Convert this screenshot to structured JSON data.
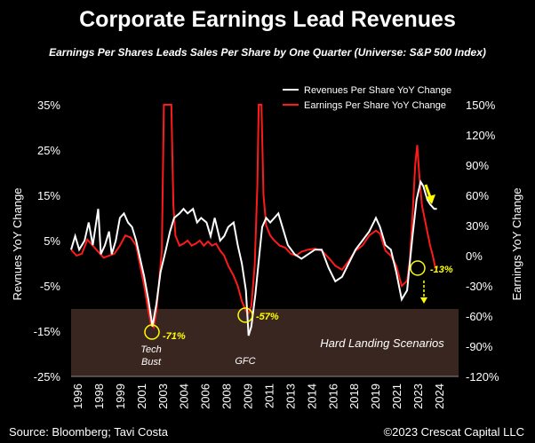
{
  "chart_data": {
    "type": "line",
    "title": "Corporate Earnings Lead Revenues",
    "subtitle": "Earnings Per Shares Leads Sales Per Share by One Quarter (Universe: S&P 500 Index)",
    "ylabel_left": "Revnues YoY Change",
    "ylabel_right": "Earnings YoY Change",
    "ylim_left": [
      -25,
      35
    ],
    "ylim_right": [
      -120,
      150
    ],
    "yticks_left": [
      "35%",
      "25%",
      "15%",
      "5%",
      "-5%",
      "-15%",
      "-25%"
    ],
    "yticks_right": [
      "150%",
      "120%",
      "90%",
      "60%",
      "30%",
      "0%",
      "-30%",
      "-60%",
      "-90%",
      "-120%"
    ],
    "x_tick_labels": [
      "1996",
      "1998",
      "1999",
      "2001",
      "2003",
      "2004",
      "2006",
      "2008",
      "2009",
      "2011",
      "2013",
      "2014",
      "2016",
      "2018",
      "2019",
      "2021",
      "2023",
      "2024"
    ],
    "xlim": [
      1996,
      2024.6
    ],
    "legend": [
      "Revenues Per Share YoY Change",
      "Earnings Per Share YoY Change"
    ],
    "series": [
      {
        "name": "Revenues Per Share YoY Change",
        "axis": "left",
        "color": "#ffffff",
        "points": [
          [
            1996.0,
            3
          ],
          [
            1996.3,
            6
          ],
          [
            1996.6,
            3
          ],
          [
            1997.0,
            5
          ],
          [
            1997.3,
            9
          ],
          [
            1997.6,
            4
          ],
          [
            1998.0,
            12
          ],
          [
            1998.2,
            2
          ],
          [
            1998.5,
            4
          ],
          [
            1998.8,
            7
          ],
          [
            1999.0,
            2
          ],
          [
            1999.3,
            5
          ],
          [
            1999.6,
            10
          ],
          [
            1999.9,
            11
          ],
          [
            2000.2,
            9
          ],
          [
            2000.5,
            8
          ],
          [
            2000.8,
            5
          ],
          [
            2001.1,
            1
          ],
          [
            2001.4,
            -3
          ],
          [
            2001.7,
            -8
          ],
          [
            2002.0,
            -14
          ],
          [
            2002.3,
            -9
          ],
          [
            2002.6,
            -2
          ],
          [
            2003.0,
            3
          ],
          [
            2003.3,
            7
          ],
          [
            2003.6,
            10
          ],
          [
            2004.0,
            11
          ],
          [
            2004.3,
            12
          ],
          [
            2004.6,
            11
          ],
          [
            2005.0,
            12
          ],
          [
            2005.3,
            9
          ],
          [
            2005.6,
            10
          ],
          [
            2006.0,
            9
          ],
          [
            2006.3,
            6
          ],
          [
            2006.6,
            10
          ],
          [
            2007.0,
            5
          ],
          [
            2007.3,
            6
          ],
          [
            2007.6,
            8
          ],
          [
            2008.0,
            9
          ],
          [
            2008.3,
            4
          ],
          [
            2008.6,
            0
          ],
          [
            2008.9,
            -6
          ],
          [
            2009.1,
            -16
          ],
          [
            2009.3,
            -14
          ],
          [
            2009.6,
            -7
          ],
          [
            2009.9,
            2
          ],
          [
            2010.1,
            8
          ],
          [
            2010.4,
            10
          ],
          [
            2010.7,
            9
          ],
          [
            2011.0,
            10
          ],
          [
            2011.3,
            11
          ],
          [
            2011.6,
            8
          ],
          [
            2012.0,
            4
          ],
          [
            2012.5,
            2
          ],
          [
            2013.0,
            1
          ],
          [
            2013.5,
            2
          ],
          [
            2014.0,
            3
          ],
          [
            2014.5,
            3
          ],
          [
            2015.0,
            -1
          ],
          [
            2015.5,
            -4
          ],
          [
            2016.0,
            -3
          ],
          [
            2016.5,
            0
          ],
          [
            2017.0,
            3
          ],
          [
            2017.5,
            5
          ],
          [
            2018.0,
            7
          ],
          [
            2018.5,
            10
          ],
          [
            2018.8,
            8
          ],
          [
            2019.2,
            4
          ],
          [
            2019.6,
            3
          ],
          [
            2020.0,
            -2
          ],
          [
            2020.4,
            -8
          ],
          [
            2020.8,
            -6
          ],
          [
            2021.0,
            0
          ],
          [
            2021.2,
            6
          ],
          [
            2021.5,
            14
          ],
          [
            2021.8,
            18
          ],
          [
            2022.0,
            17
          ],
          [
            2022.3,
            14
          ],
          [
            2022.5,
            13
          ],
          [
            2022.8,
            12
          ],
          [
            2023.0,
            12
          ]
        ]
      },
      {
        "name": "Earnings Per Share YoY Change",
        "axis": "right",
        "color": "#ff1a1a",
        "points": [
          [
            1996.0,
            6
          ],
          [
            1996.4,
            0
          ],
          [
            1996.8,
            2
          ],
          [
            1997.2,
            16
          ],
          [
            1997.6,
            10
          ],
          [
            1998.0,
            4
          ],
          [
            1998.4,
            -2
          ],
          [
            1998.8,
            0
          ],
          [
            1999.2,
            2
          ],
          [
            1999.6,
            10
          ],
          [
            2000.0,
            20
          ],
          [
            2000.4,
            18
          ],
          [
            2000.8,
            10
          ],
          [
            2001.1,
            -10
          ],
          [
            2001.4,
            -30
          ],
          [
            2001.7,
            -55
          ],
          [
            2001.9,
            -68
          ],
          [
            2002.1,
            -71
          ],
          [
            2002.3,
            -55
          ],
          [
            2002.5,
            -25
          ],
          [
            2002.7,
            5
          ],
          [
            2002.85,
            150
          ],
          [
            2003.0,
            150
          ],
          [
            2003.2,
            150
          ],
          [
            2003.4,
            150
          ],
          [
            2003.55,
            50
          ],
          [
            2003.7,
            20
          ],
          [
            2004.0,
            10
          ],
          [
            2004.3,
            12
          ],
          [
            2004.6,
            15
          ],
          [
            2004.9,
            10
          ],
          [
            2005.2,
            12
          ],
          [
            2005.5,
            15
          ],
          [
            2005.8,
            10
          ],
          [
            2006.1,
            14
          ],
          [
            2006.4,
            10
          ],
          [
            2006.7,
            12
          ],
          [
            2007.0,
            5
          ],
          [
            2007.3,
            0
          ],
          [
            2007.6,
            -10
          ],
          [
            2008.0,
            -20
          ],
          [
            2008.3,
            -30
          ],
          [
            2008.6,
            -45
          ],
          [
            2008.9,
            -55
          ],
          [
            2009.1,
            -57
          ],
          [
            2009.3,
            -50
          ],
          [
            2009.55,
            -10
          ],
          [
            2009.75,
            70
          ],
          [
            2009.85,
            150
          ],
          [
            2010.05,
            150
          ],
          [
            2010.2,
            60
          ],
          [
            2010.4,
            30
          ],
          [
            2010.7,
            20
          ],
          [
            2011.0,
            15
          ],
          [
            2011.4,
            10
          ],
          [
            2011.8,
            8
          ],
          [
            2012.2,
            2
          ],
          [
            2012.6,
            0
          ],
          [
            2013.0,
            4
          ],
          [
            2013.5,
            6
          ],
          [
            2014.0,
            7
          ],
          [
            2014.5,
            5
          ],
          [
            2015.0,
            -2
          ],
          [
            2015.5,
            -10
          ],
          [
            2016.0,
            -14
          ],
          [
            2016.5,
            -5
          ],
          [
            2017.0,
            5
          ],
          [
            2017.5,
            10
          ],
          [
            2018.0,
            20
          ],
          [
            2018.5,
            25
          ],
          [
            2018.8,
            22
          ],
          [
            2019.2,
            5
          ],
          [
            2019.6,
            0
          ],
          [
            2020.0,
            -10
          ],
          [
            2020.4,
            -30
          ],
          [
            2020.8,
            -25
          ],
          [
            2021.0,
            -5
          ],
          [
            2021.2,
            40
          ],
          [
            2021.4,
            90
          ],
          [
            2021.55,
            110
          ],
          [
            2021.7,
            80
          ],
          [
            2021.9,
            50
          ],
          [
            2022.2,
            30
          ],
          [
            2022.5,
            10
          ],
          [
            2022.7,
            0
          ],
          [
            2022.9,
            -13
          ]
        ]
      }
    ],
    "annotations": {
      "tech_bust_value": "-71%",
      "tech_bust_label": "Tech Bust",
      "gfc_value": "-57%",
      "gfc_label": "GFC",
      "current_value": "-13%",
      "zone_label": "Hard Landing Scenarios"
    }
  },
  "footer": {
    "source": "Source: Bloomberg; Tavi Costa",
    "copyright": "©2023 Crescat Capital LLC"
  }
}
